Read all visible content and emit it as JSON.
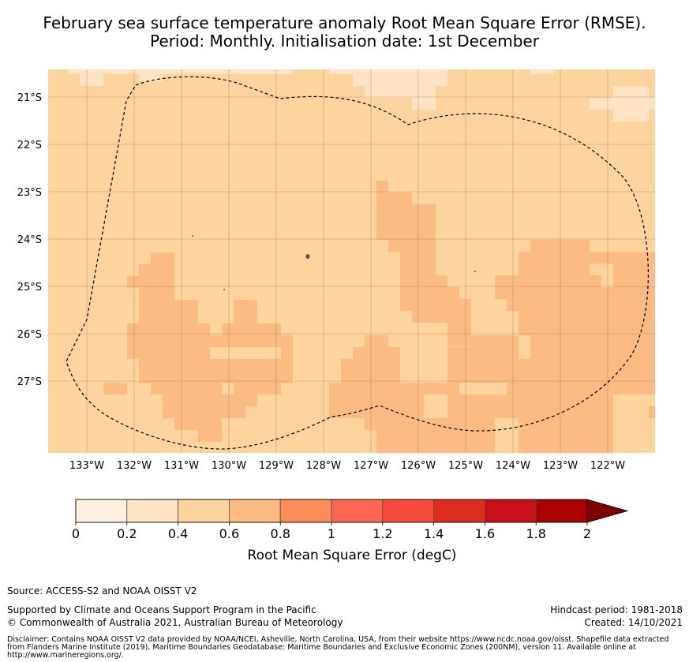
{
  "title": {
    "line1": "February sea surface temperature anomaly Root Mean Square Error (RMSE).",
    "line2": "Period: Monthly. Initialisation date: 1st December"
  },
  "map": {
    "lon_labels": [
      "133°W",
      "132°W",
      "131°W",
      "130°W",
      "129°W",
      "128°W",
      "127°W",
      "126°W",
      "125°W",
      "124°W",
      "123°W",
      "122°W"
    ],
    "lat_labels": [
      "21°S",
      "22°S",
      "23°S",
      "24°S",
      "25°S",
      "26°S",
      "27°S"
    ],
    "lon_range": [
      -133.8,
      -121.0
    ],
    "lat_range": [
      -28.5,
      -20.4
    ],
    "grid": true,
    "colors": {
      "bin_0_2": "#fff0e0",
      "bin_2_4": "#ffe4c4",
      "bin_4_6": "#fdd49e",
      "bin_6_8": "#fdbb84",
      "bin_8_10": "#fc8d59",
      "eez_boundary": "#000000"
    }
  },
  "colorbar": {
    "ticks": [
      "0",
      "0.2",
      "0.4",
      "0.6",
      "0.8",
      "1",
      "1.2",
      "1.4",
      "1.6",
      "1.8",
      "2"
    ],
    "label": "Root Mean Square Error (degC)",
    "colors": [
      "#fff0e0",
      "#ffe4c4",
      "#fdd49e",
      "#fdbb84",
      "#fc8d59",
      "#fc6650",
      "#f74a3c",
      "#dc2d1f",
      "#c8101a",
      "#aa0000",
      "#7f0000"
    ],
    "extend": "max"
  },
  "footer": {
    "source": "Source: ACCESS-S2 and NOAA OISST V2",
    "supported": "Supported by Climate and Oceans Support Program in the Pacific",
    "copyright": "© Commonwealth of Australia 2021, Australian Bureau of Meteorology",
    "hindcast": "Hindcast period: 1981-2018",
    "created": "Created: 14/10/2021",
    "disclaimer": "Disclaimer: Contains NOAA OISST V2 data provided by NOAA/NCEI, Asheville, North Carolina, USA, from their website https://www.ncdc.noaa.gov/oisst. Shapefile data extracted from Flanders Marine Institute (2019), Maritime Boundaries Geodatabase: Maritime Boundaries and Exclusive Economic Zones (200NM), version 11. Available online at http://www.marineregions.org/."
  }
}
